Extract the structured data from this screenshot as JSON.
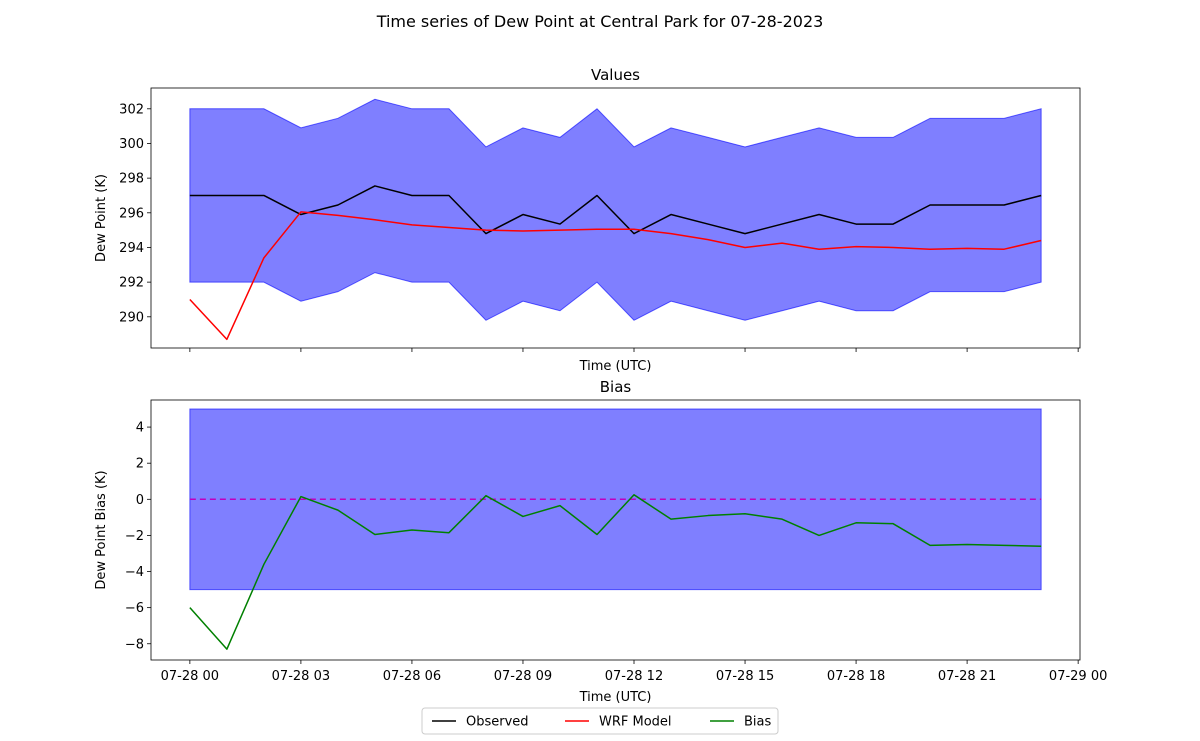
{
  "figure": {
    "title": "Time series of Dew Point at Central Park for 07-28-2023"
  },
  "chart_data": [
    {
      "type": "line",
      "title": "Values",
      "xlabel": "Time (UTC)",
      "ylabel": "Dew Point (K)",
      "x_hours": [
        0,
        1,
        2,
        3,
        4,
        5,
        6,
        7,
        8,
        9,
        10,
        11,
        12,
        13,
        14,
        15,
        16,
        17,
        18,
        19,
        20,
        21,
        22,
        23
      ],
      "x_ticks": [
        0,
        3,
        6,
        9,
        12,
        15,
        18,
        21,
        24
      ],
      "x_tick_labels_shown": false,
      "xlim": [
        -1.05,
        24.05
      ],
      "ylim": [
        288.2,
        303.2
      ],
      "y_ticks": [
        290,
        292,
        294,
        296,
        298,
        300,
        302
      ],
      "y_tick_labels": [
        "290",
        "292",
        "294",
        "296",
        "298",
        "300",
        "302"
      ],
      "band": {
        "color": "#0000ff",
        "opacity": 0.5,
        "upper": [
          302,
          302,
          302,
          300.9,
          301.45,
          302.55,
          302,
          302,
          299.8,
          300.9,
          300.35,
          302,
          299.8,
          300.9,
          300.35,
          299.8,
          300.35,
          300.9,
          300.35,
          300.35,
          301.45,
          301.45,
          301.45,
          302
        ],
        "lower": [
          292,
          292,
          292,
          290.9,
          291.45,
          292.55,
          292,
          292,
          289.8,
          290.9,
          290.35,
          292,
          289.8,
          290.9,
          290.35,
          289.8,
          290.35,
          290.9,
          290.35,
          290.35,
          291.45,
          291.45,
          291.45,
          292
        ]
      },
      "series": [
        {
          "name": "Observed",
          "color": "#000000",
          "values": [
            297,
            297,
            297,
            295.9,
            296.45,
            297.55,
            297,
            297,
            294.8,
            295.9,
            295.35,
            297,
            294.8,
            295.9,
            295.35,
            294.8,
            295.35,
            295.9,
            295.35,
            295.35,
            296.45,
            296.45,
            296.45,
            297
          ]
        },
        {
          "name": "WRF Model",
          "color": "#ff0000",
          "values": [
            291,
            288.7,
            293.4,
            296.05,
            295.85,
            295.6,
            295.3,
            295.15,
            295,
            294.95,
            295,
            295.05,
            295.05,
            294.8,
            294.45,
            294,
            294.25,
            293.9,
            294.05,
            294,
            293.9,
            293.95,
            293.9,
            294.4
          ]
        }
      ]
    },
    {
      "type": "line",
      "title": "Bias",
      "xlabel": "Time (UTC)",
      "ylabel": "Dew Point Bias (K)",
      "x_hours": [
        0,
        1,
        2,
        3,
        4,
        5,
        6,
        7,
        8,
        9,
        10,
        11,
        12,
        13,
        14,
        15,
        16,
        17,
        18,
        19,
        20,
        21,
        22,
        23
      ],
      "x_ticks": [
        0,
        3,
        6,
        9,
        12,
        15,
        18,
        21,
        24
      ],
      "x_tick_labels": [
        "07-28 00",
        "07-28 03",
        "07-28 06",
        "07-28 09",
        "07-28 12",
        "07-28 15",
        "07-28 18",
        "07-28 21",
        "07-29 00"
      ],
      "xlim": [
        -1.05,
        24.05
      ],
      "ylim": [
        -8.9,
        5.5
      ],
      "y_ticks": [
        -8,
        -6,
        -4,
        -2,
        0,
        2,
        4
      ],
      "y_tick_labels": [
        "−8",
        "−6",
        "−4",
        "−2",
        "0",
        "2",
        "4"
      ],
      "band": {
        "color": "#0000ff",
        "opacity": 0.5,
        "upper": 5,
        "lower": -5
      },
      "zero_line": {
        "value": 0,
        "color": "#bf00bf",
        "style": "dashed"
      },
      "series": [
        {
          "name": "Bias",
          "color": "#008000",
          "values": [
            -6,
            -8.3,
            -3.6,
            0.15,
            -0.6,
            -1.95,
            -1.7,
            -1.85,
            0.2,
            -0.95,
            -0.35,
            -1.95,
            0.25,
            -1.1,
            -0.9,
            -0.8,
            -1.1,
            -2,
            -1.3,
            -1.35,
            -2.55,
            -2.5,
            -2.55,
            -2.6
          ]
        }
      ]
    }
  ],
  "legend": {
    "placement": "bottom-center",
    "items": [
      {
        "label": "Observed",
        "color": "#000000"
      },
      {
        "label": "WRF Model",
        "color": "#ff0000"
      },
      {
        "label": "Bias",
        "color": "#008000"
      }
    ]
  }
}
